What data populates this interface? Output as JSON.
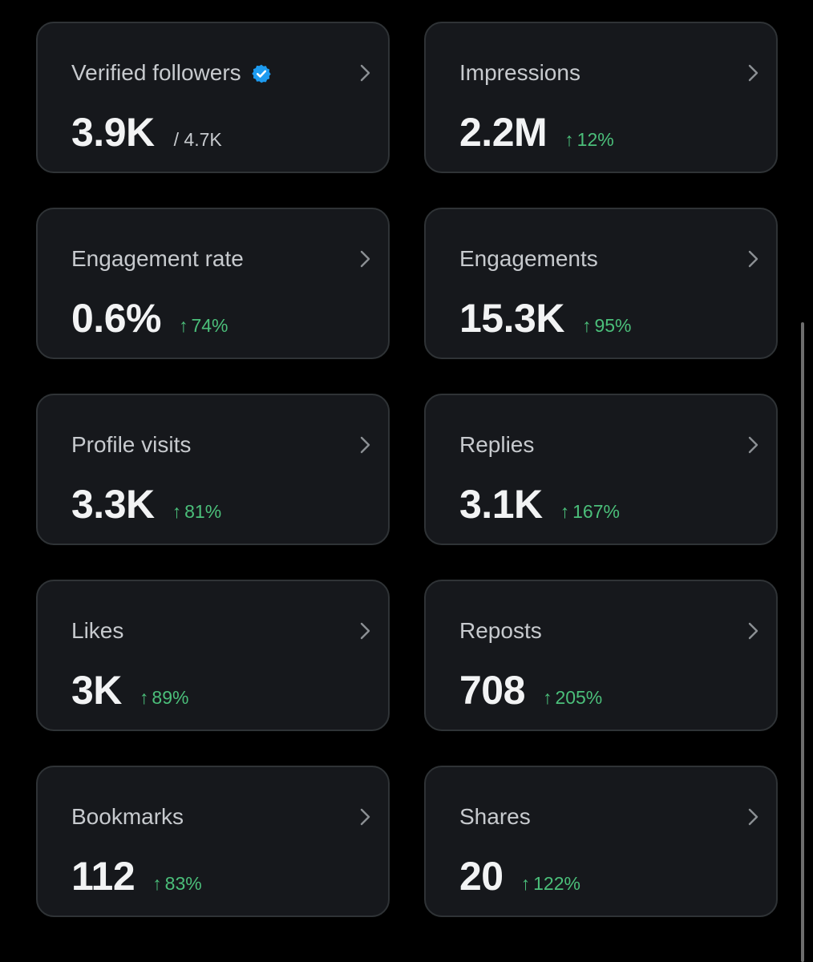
{
  "colors": {
    "background": "#000000",
    "card_background": "#16181c",
    "card_border": "#2f3336",
    "positive_change": "#4bbf7a",
    "verified_badge": "#1d9bf0"
  },
  "cards": [
    {
      "label": "Verified followers",
      "value": "3.9K",
      "total": "/ 4.7K",
      "icon": "verified-badge-icon"
    },
    {
      "label": "Impressions",
      "value": "2.2M",
      "arrow": "↑",
      "change": "12%"
    },
    {
      "label": "Engagement rate",
      "value": "0.6%",
      "arrow": "↑",
      "change": "74%"
    },
    {
      "label": "Engagements",
      "value": "15.3K",
      "arrow": "↑",
      "change": "95%"
    },
    {
      "label": "Profile visits",
      "value": "3.3K",
      "arrow": "↑",
      "change": "81%"
    },
    {
      "label": "Replies",
      "value": "3.1K",
      "arrow": "↑",
      "change": "167%"
    },
    {
      "label": "Likes",
      "value": "3K",
      "arrow": "↑",
      "change": "89%"
    },
    {
      "label": "Reposts",
      "value": "708",
      "arrow": "↑",
      "change": "205%"
    },
    {
      "label": "Bookmarks",
      "value": "112",
      "arrow": "↑",
      "change": "83%"
    },
    {
      "label": "Shares",
      "value": "20",
      "arrow": "↑",
      "change": "122%"
    }
  ]
}
